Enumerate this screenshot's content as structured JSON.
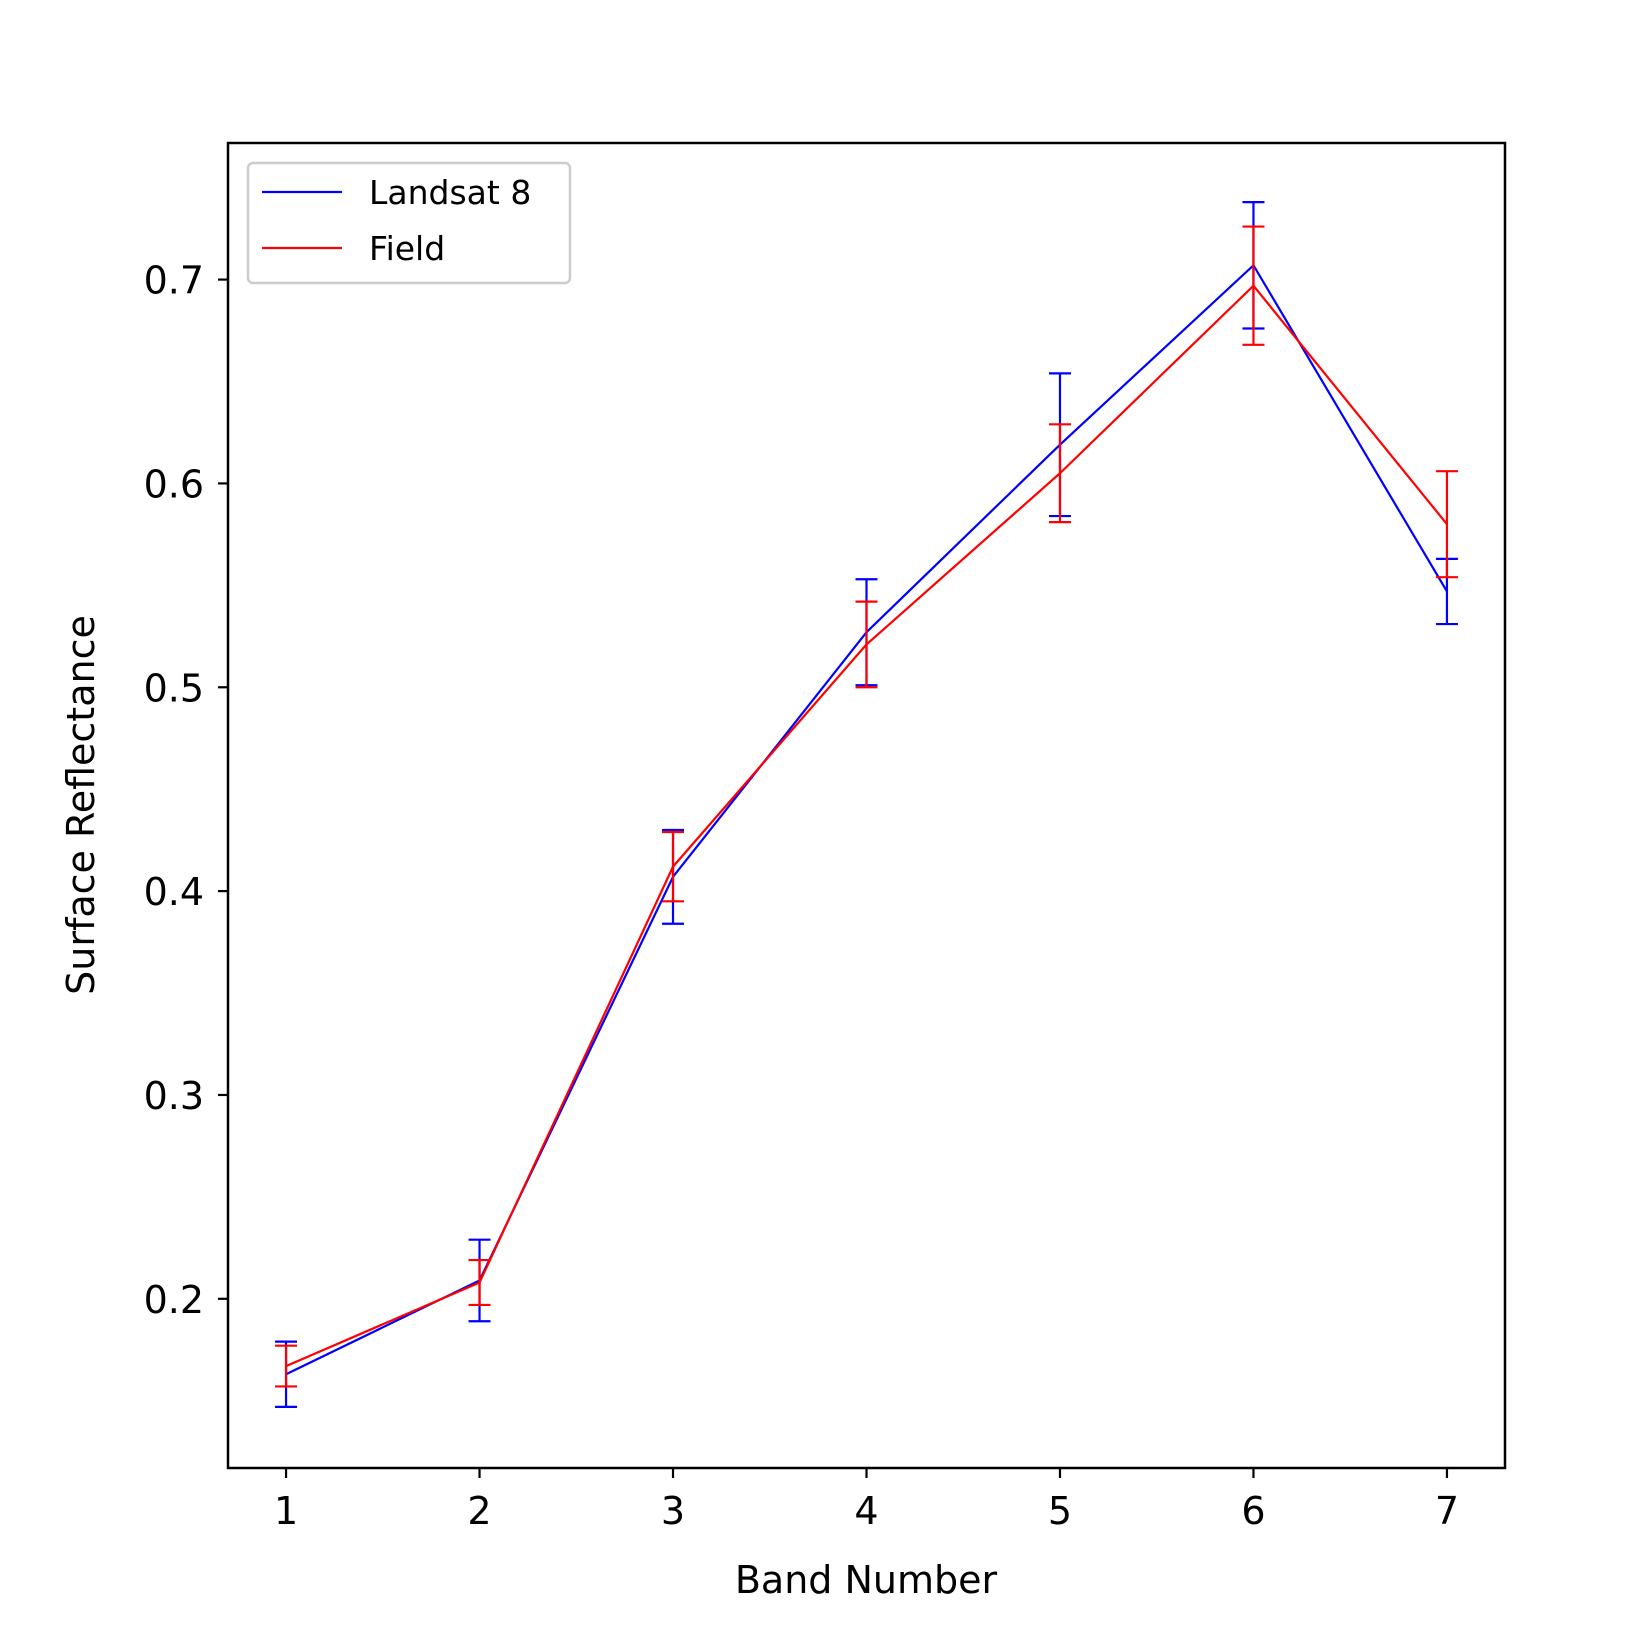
{
  "chart_data": {
    "type": "line",
    "title": "",
    "xlabel": "Band Number",
    "ylabel": "Surface Reflectance",
    "x": [
      1,
      2,
      3,
      4,
      5,
      6,
      7
    ],
    "xlim": [
      0.7,
      7.3
    ],
    "ylim": [
      0.117,
      0.767
    ],
    "xticks": [
      1,
      2,
      3,
      4,
      5,
      6,
      7
    ],
    "yticks": [
      0.2,
      0.3,
      0.4,
      0.5,
      0.6,
      0.7
    ],
    "xtick_labels": [
      "1",
      "2",
      "3",
      "4",
      "5",
      "6",
      "7"
    ],
    "ytick_labels": [
      "0.2",
      "0.3",
      "0.4",
      "0.5",
      "0.6",
      "0.7"
    ],
    "grid": false,
    "legend_position": "upper-left",
    "series": [
      {
        "name": "Landsat 8",
        "color": "#0000ff",
        "values": [
          0.163,
          0.209,
          0.407,
          0.527,
          0.619,
          0.707,
          0.547
        ],
        "error": [
          0.016,
          0.02,
          0.023,
          0.026,
          0.035,
          0.031,
          0.016
        ]
      },
      {
        "name": "Field",
        "color": "#ff0000",
        "values": [
          0.167,
          0.208,
          0.412,
          0.521,
          0.605,
          0.697,
          0.58
        ],
        "error": [
          0.01,
          0.011,
          0.017,
          0.021,
          0.024,
          0.029,
          0.026
        ]
      }
    ]
  }
}
